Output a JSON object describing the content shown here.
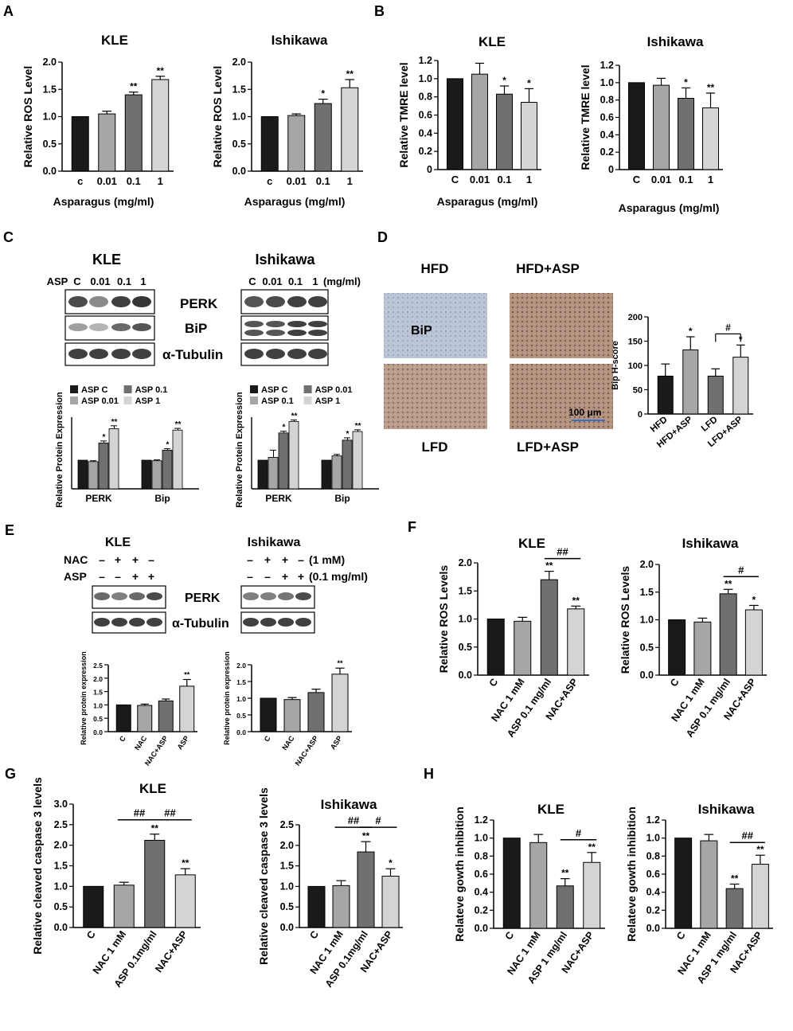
{
  "colors": {
    "black": "#1a1a1a",
    "dark_gray": "#707070",
    "mid_gray": "#a6a6a6",
    "light_gray": "#d4d4d4",
    "blot_band": "#2b2b2b",
    "ihc_blue": "#b9c4d6",
    "ihc_brown": "#a8806a"
  },
  "panel_letters": [
    "A",
    "B",
    "C",
    "D",
    "E",
    "F",
    "G",
    "H"
  ],
  "chart_data": [
    {
      "id": "A1",
      "type": "bar",
      "title": "KLE",
      "ylabel": "Relative ROS Level",
      "xlabel": "Asparagus (mg/ml)",
      "categories": [
        "c",
        "0.01",
        "0.1",
        "1"
      ],
      "values": [
        1.0,
        1.05,
        1.4,
        1.68
      ],
      "errors": [
        0,
        0.05,
        0.05,
        0.06
      ],
      "sig": [
        "",
        "",
        "**",
        "**"
      ],
      "ylim": [
        0,
        2.0
      ],
      "yticks": [
        "0.0",
        "0.5",
        "1.0",
        "1.5",
        "2.0"
      ]
    },
    {
      "id": "A2",
      "type": "bar",
      "title": "Ishikawa",
      "ylabel": "Relative ROS Level",
      "xlabel": "Asparagus (mg/ml)",
      "categories": [
        "c",
        "0.01",
        "0.1",
        "1"
      ],
      "values": [
        1.0,
        1.02,
        1.24,
        1.53
      ],
      "errors": [
        0,
        0.03,
        0.08,
        0.15
      ],
      "sig": [
        "",
        "",
        "*",
        "**"
      ],
      "ylim": [
        0,
        2.0
      ],
      "yticks": [
        "0.0",
        "0.5",
        "1.0",
        "1.5",
        "2.0"
      ]
    },
    {
      "id": "B1",
      "type": "bar",
      "title": "KLE",
      "ylabel": "Relative TMRE level",
      "xlabel": "Asparagus (mg/ml)",
      "categories": [
        "C",
        "0.01",
        "0.1",
        "1"
      ],
      "values": [
        1.0,
        1.05,
        0.83,
        0.74
      ],
      "errors": [
        0,
        0.12,
        0.09,
        0.15
      ],
      "sig": [
        "",
        "",
        "*",
        "*"
      ],
      "ylim": [
        0,
        1.2
      ],
      "yticks": [
        "0",
        "0.2",
        "0.4",
        "0.6",
        "0.8",
        "1.0",
        "1.2"
      ]
    },
    {
      "id": "B2",
      "type": "bar",
      "title": "Ishikawa",
      "ylabel": "Relative TMRE level",
      "xlabel": "Asparagus (mg/ml)",
      "categories": [
        "C",
        "0.01",
        "0.1",
        "1"
      ],
      "values": [
        1.0,
        0.97,
        0.82,
        0.71
      ],
      "errors": [
        0,
        0.08,
        0.12,
        0.17
      ],
      "sig": [
        "",
        "",
        "*",
        "**"
      ],
      "ylim": [
        0,
        1.2
      ],
      "yticks": [
        "0",
        "0.2",
        "0.4",
        "0.6",
        "0.8",
        "1.0",
        "1.2"
      ]
    },
    {
      "id": "C1",
      "type": "bar",
      "ylabel": "Relative Protein Expression",
      "categories": [
        "PERK",
        "Bip"
      ],
      "series": [
        {
          "name": "ASP C",
          "values": [
            1.0,
            1.0
          ]
        },
        {
          "name": "ASP 0.01",
          "values": [
            0.95,
            0.98
          ]
        },
        {
          "name": "ASP 0.1",
          "values": [
            1.6,
            1.35
          ]
        },
        {
          "name": "ASP 1",
          "values": [
            2.1,
            2.05
          ]
        }
      ],
      "errors": [
        [
          0,
          0
        ],
        [
          0.03,
          0.03
        ],
        [
          0.07,
          0.05
        ],
        [
          0.1,
          0.06
        ]
      ],
      "sig": [
        [
          "",
          "",
          "*",
          "**"
        ],
        [
          "",
          "",
          "*",
          "**"
        ]
      ],
      "ylim": [
        0,
        2.5
      ]
    },
    {
      "id": "C2",
      "type": "bar",
      "ylabel": "Relative Protein Expression",
      "categories": [
        "PERK",
        "Bip"
      ],
      "series": [
        {
          "name": "ASP C",
          "values": [
            1.0,
            1.0
          ]
        },
        {
          "name": "ASP 0.1",
          "values": [
            1.1,
            1.15
          ]
        },
        {
          "name": "ASP 0.01",
          "values": [
            1.95,
            1.7
          ]
        },
        {
          "name": "ASP 1",
          "values": [
            2.35,
            2.0
          ]
        }
      ],
      "errors": [
        [
          0,
          0
        ],
        [
          0.25,
          0.05
        ],
        [
          0.06,
          0.08
        ],
        [
          0.05,
          0.06
        ]
      ],
      "sig": [
        [
          "",
          "",
          "*",
          "**"
        ],
        [
          "",
          "",
          "*",
          "**"
        ]
      ],
      "ylim": [
        0,
        2.5
      ]
    },
    {
      "id": "D",
      "type": "bar",
      "ylabel": "Bip H-score",
      "categories": [
        "HFD",
        "HFD+ASP",
        "LFD",
        "LFD+ASP"
      ],
      "values": [
        78,
        132,
        78,
        117
      ],
      "errors": [
        25,
        27,
        15,
        25
      ],
      "sig": [
        "",
        "*",
        "",
        "*"
      ],
      "bracket": {
        "from": 2,
        "to": 3,
        "label": "#"
      },
      "ylim": [
        0,
        200
      ],
      "yticks": [
        "0",
        "50",
        "100",
        "150",
        "200"
      ]
    },
    {
      "id": "E1",
      "type": "bar",
      "ylabel": "Relative protein expression",
      "categories": [
        "C",
        "NAC",
        "NAC+ASP",
        "ASP"
      ],
      "values": [
        1.0,
        0.98,
        1.15,
        1.7
      ],
      "errors": [
        0,
        0.05,
        0.07,
        0.25
      ],
      "sig": [
        "",
        "",
        "",
        "**"
      ],
      "ylim": [
        0,
        2.5
      ],
      "yticks": [
        "0.0",
        "0.5",
        "1.0",
        "1.5",
        "2.0",
        "2.5"
      ]
    },
    {
      "id": "E2",
      "type": "bar",
      "ylabel": "Relative protein expression",
      "categories": [
        "C",
        "NAC",
        "NAC+ASP",
        "ASP"
      ],
      "values": [
        1.0,
        0.96,
        1.17,
        1.72
      ],
      "errors": [
        0,
        0.06,
        0.1,
        0.18
      ],
      "sig": [
        "",
        "",
        "",
        "**"
      ],
      "ylim": [
        0,
        2.0
      ],
      "yticks": [
        "0.0",
        "0.5",
        "1.0",
        "1.5",
        "2.0"
      ]
    },
    {
      "id": "F1",
      "type": "bar",
      "title": "KLE",
      "ylabel": "Relative ROS Levels",
      "categories": [
        "C",
        "NAC 1 mM",
        "ASP 0.1 mg/ml",
        "NAC+ASP"
      ],
      "values": [
        1.0,
        0.96,
        1.7,
        1.18
      ],
      "errors": [
        0,
        0.07,
        0.15,
        0.05
      ],
      "sig": [
        "",
        "",
        "**",
        "**"
      ],
      "bracket": {
        "from": 2,
        "to": 3,
        "label": "##"
      },
      "ylim": [
        0,
        2.0
      ],
      "yticks": [
        "0.0",
        "0.5",
        "1.0",
        "1.5",
        "2.0"
      ]
    },
    {
      "id": "F2",
      "type": "bar",
      "title": "Ishikawa",
      "ylabel": "Relative ROS Levels",
      "categories": [
        "C",
        "NAC 1 mM",
        "ASP 0.1 mg/ml",
        "NAC+ASP"
      ],
      "values": [
        1.0,
        0.96,
        1.47,
        1.18
      ],
      "errors": [
        0,
        0.07,
        0.08,
        0.08
      ],
      "sig": [
        "",
        "",
        "**",
        "*"
      ],
      "bracket": {
        "from": 2,
        "to": 3,
        "label": "#"
      },
      "ylim": [
        0,
        2.0
      ],
      "yticks": [
        "0.0",
        "0.5",
        "1.0",
        "1.5",
        "2.0"
      ]
    },
    {
      "id": "G1",
      "type": "bar",
      "title": "KLE",
      "ylabel": "Relative cleaved caspase 3 levels",
      "categories": [
        "C",
        "NAC 1 mM",
        "ASP 0.1mg/ml",
        "NAC+ASP"
      ],
      "values": [
        1.0,
        1.03,
        2.12,
        1.28
      ],
      "errors": [
        0,
        0.07,
        0.15,
        0.15
      ],
      "sig": [
        "",
        "",
        "**",
        "**"
      ],
      "brackets": [
        {
          "from": 1,
          "to": 2,
          "label": "##"
        },
        {
          "from": 2,
          "to": 3,
          "label": "##"
        }
      ],
      "ylim": [
        0,
        3.0
      ],
      "yticks": [
        "0.0",
        "0.5",
        "1.0",
        "1.5",
        "2.0",
        "2.5",
        "3.0"
      ]
    },
    {
      "id": "G2",
      "type": "bar",
      "title": "Ishikawa",
      "ylabel": "Relative cleaved caspase 3 levels",
      "categories": [
        "C",
        "NAC 1 mM",
        "ASP 0.1mg/ml",
        "NAC+ASP"
      ],
      "values": [
        1.0,
        1.02,
        1.84,
        1.25
      ],
      "errors": [
        0,
        0.12,
        0.25,
        0.18
      ],
      "sig": [
        "",
        "",
        "**",
        "*"
      ],
      "brackets": [
        {
          "from": 1,
          "to": 2,
          "label": "##"
        },
        {
          "from": 2,
          "to": 3,
          "label": "#"
        }
      ],
      "ylim": [
        0,
        2.5
      ],
      "yticks": [
        "0.0",
        "0.5",
        "1.0",
        "1.5",
        "2.0",
        "2.5"
      ]
    },
    {
      "id": "H1",
      "type": "bar",
      "title": "KLE",
      "ylabel": "Relateve gowth inhibition",
      "categories": [
        "C",
        "NAC 1 mM",
        "ASP 1 mg/ml",
        "NAC+ASP"
      ],
      "values": [
        1.0,
        0.95,
        0.47,
        0.73
      ],
      "errors": [
        0,
        0.09,
        0.08,
        0.11
      ],
      "sig": [
        "",
        "",
        "**",
        "**"
      ],
      "bracket": {
        "from": 2,
        "to": 3,
        "label": "#"
      },
      "ylim": [
        0,
        1.2
      ],
      "yticks": [
        "0.0",
        "0.2",
        "0.4",
        "0.6",
        "0.8",
        "1.0",
        "1.2"
      ]
    },
    {
      "id": "H2",
      "type": "bar",
      "title": "Ishikawa",
      "ylabel": "Relateve gowth inhibition",
      "categories": [
        "C",
        "NAC 1 mM",
        "ASP 1 mg/ml",
        "NAC+ASP"
      ],
      "values": [
        1.0,
        0.97,
        0.44,
        0.71
      ],
      "errors": [
        0,
        0.07,
        0.05,
        0.1
      ],
      "sig": [
        "",
        "",
        "**",
        "**"
      ],
      "bracket": {
        "from": 2,
        "to": 3,
        "label": "##"
      },
      "ylim": [
        0,
        1.2
      ],
      "yticks": [
        "0.0",
        "0.2",
        "0.4",
        "0.6",
        "0.8",
        "1.0",
        "1.2"
      ]
    }
  ],
  "blots": {
    "C": {
      "kle_title": "KLE",
      "ishikawa_title": "Ishikawa",
      "kle_lanes": [
        "ASP",
        "C",
        "0.01",
        "0.1",
        "1"
      ],
      "ishikawa_lanes": [
        "C",
        "0.01",
        "0.1",
        "1",
        "(mg/ml)"
      ],
      "proteins": [
        "PERK",
        "BiP",
        "α-Tubulin"
      ]
    },
    "E": {
      "kle_title": "KLE",
      "ishikawa_title": "Ishikawa",
      "nac_label": "NAC",
      "asp_label": "ASP",
      "nac_signs": [
        "–",
        "+",
        "+",
        "–"
      ],
      "asp_signs": [
        "–",
        "–",
        "+",
        "+"
      ],
      "nac_unit": "(1 mM)",
      "asp_unit": "(0.1 mg/ml)",
      "proteins": [
        "PERK",
        "α-Tubulin"
      ]
    }
  },
  "ihc": {
    "labels": [
      "HFD",
      "HFD+ASP",
      "LFD",
      "LFD+ASP"
    ],
    "stain_label": "BiP",
    "scale_bar": "100 μm"
  }
}
